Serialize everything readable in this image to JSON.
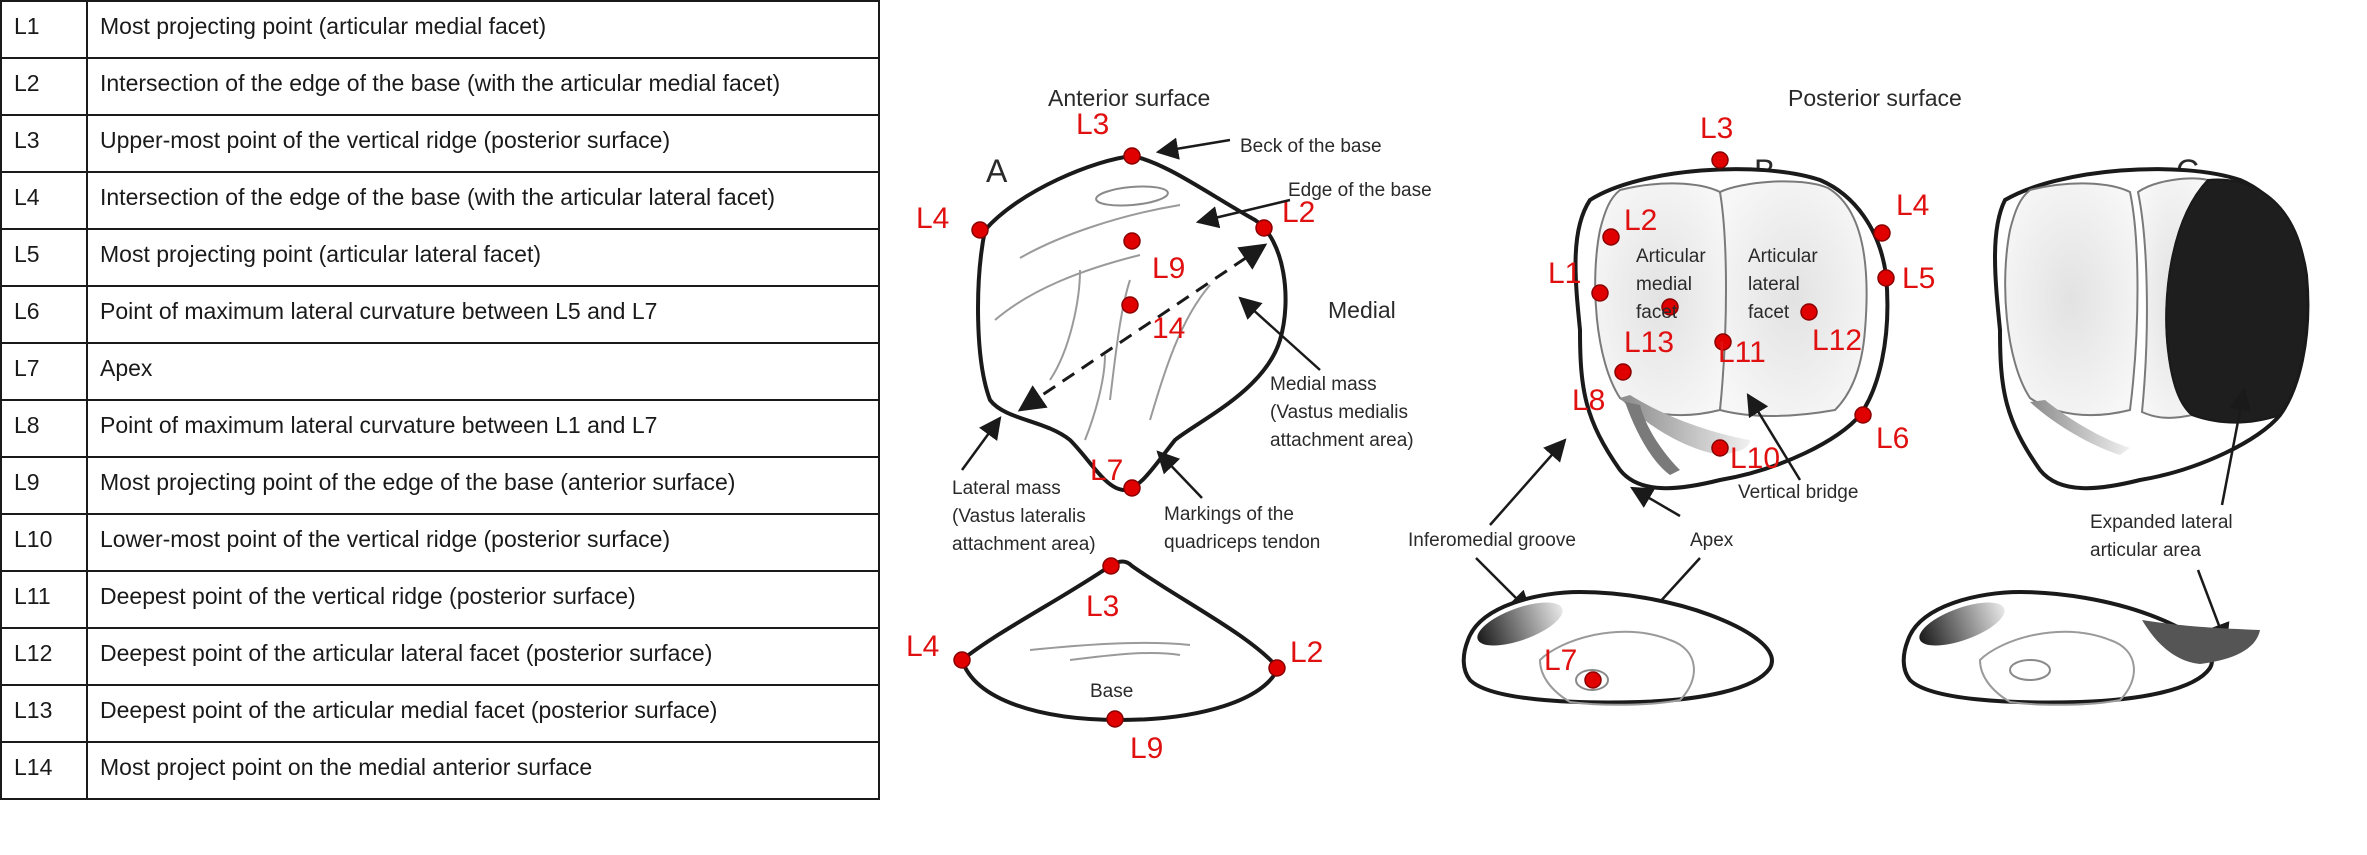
{
  "landmarks": [
    {
      "code": "L1",
      "description": "Most projecting point (articular medial facet)"
    },
    {
      "code": "L2",
      "description": "Intersection of the edge of the base (with the articular medial facet)"
    },
    {
      "code": "L3",
      "description": "Upper-most point of the vertical ridge (posterior surface)"
    },
    {
      "code": "L4",
      "description": "Intersection of the edge of the base (with the articular lateral facet)"
    },
    {
      "code": "L5",
      "description": "Most projecting point (articular lateral facet)"
    },
    {
      "code": "L6",
      "description": "Point of maximum lateral curvature between L5 and L7"
    },
    {
      "code": "L7",
      "description": "Apex"
    },
    {
      "code": "L8",
      "description": "Point of maximum lateral curvature between L1 and L7"
    },
    {
      "code": "L9",
      "description": "Most projecting point of the edge of the base (anterior surface)"
    },
    {
      "code": "L10",
      "description": "Lower-most point of the vertical ridge (posterior surface)"
    },
    {
      "code": "L11",
      "description": "Deepest point of the vertical ridge (posterior surface)"
    },
    {
      "code": "L12",
      "description": "Deepest point of the articular lateral facet (posterior surface)"
    },
    {
      "code": "L13",
      "description": "Deepest point of the articular medial facet (posterior surface)"
    },
    {
      "code": "L14",
      "description": "Most project point on the medial anterior surface"
    }
  ],
  "figure": {
    "anterior_title": "Anterior surface",
    "posterior_title": "Posterior surface",
    "medial_label": "Medial",
    "panels": {
      "a": "A",
      "b": "B",
      "c": "C"
    },
    "annotations": {
      "beck": "Beck of the base",
      "edge": "Edge of the base",
      "medial_mass": [
        "Medial mass",
        "(Vastus medialis",
        "attachment area)"
      ],
      "lateral_mass": [
        "Lateral mass",
        "(Vastus lateralis",
        "attachment area)"
      ],
      "markings": [
        "Markings of the",
        "quadriceps tendon"
      ],
      "base": "Base",
      "articular_medial": [
        "Articular",
        "medial",
        "facet"
      ],
      "articular_lateral": [
        "Articular",
        "lateral",
        "facet"
      ],
      "vertical_bridge": "Vertical bridge",
      "inferomedial": "Inferomedial groove",
      "apex": "Apex",
      "expanded": [
        "Expanded lateral",
        "articular area"
      ]
    },
    "markers": {
      "a": {
        "l3": "L3",
        "l4": "L4",
        "l2": "L2",
        "l9": "L9",
        "l14": "14",
        "l7": "L7"
      },
      "a_base": {
        "l3": "L3",
        "l4": "L4",
        "l2": "L2",
        "l9": "L9"
      },
      "b": {
        "l3": "L3",
        "l2": "L2",
        "l4": "L4",
        "l1": "L1",
        "l5": "L5",
        "l13": "L13",
        "l11": "L11",
        "l12": "L12",
        "l8": "L8",
        "l6": "L6",
        "l10": "L10"
      },
      "b_base": {
        "l7": "L7"
      }
    }
  },
  "colors": {
    "landmark": "#e00000",
    "outline": "#1a1a1a",
    "expanded_area": "#1e1e1e"
  }
}
